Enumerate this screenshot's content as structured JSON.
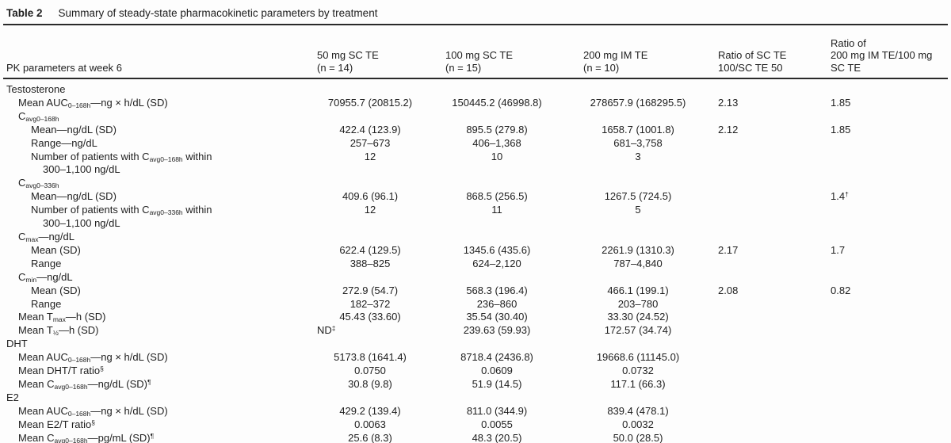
{
  "title": {
    "label": "Table 2",
    "text": "Summary of steady-state pharmacokinetic parameters by treatment"
  },
  "table": {
    "header": {
      "param_col": "PK parameters at week 6",
      "columns": [
        {
          "key": "50mg-sc-te",
          "lines": [
            "50 mg SC TE",
            "(n = 14)"
          ]
        },
        {
          "key": "100mg-sc-te",
          "lines": [
            "100 mg SC TE",
            "(n = 15)"
          ]
        },
        {
          "key": "200mg-im-te",
          "lines": [
            "200 mg IM TE",
            "(n = 10)"
          ]
        },
        {
          "key": "ratio-sc100-sc50",
          "lines": [
            "Ratio of SC TE",
            "100/SC TE 50"
          ]
        },
        {
          "key": "ratio-im200-sc100",
          "lines": [
            "Ratio of",
            "200 mg IM TE/100 mg",
            "SC TE"
          ]
        }
      ]
    },
    "rows": [
      {
        "indent": 0,
        "label": [
          {
            "t": "Testosterone"
          }
        ],
        "cells": [
          "",
          "",
          "",
          "",
          ""
        ]
      },
      {
        "indent": 1,
        "label": [
          {
            "t": "Mean AUC"
          },
          {
            "t": "0–168h",
            "sub": true
          },
          {
            "t": "—ng × h/dL (SD)"
          }
        ],
        "cells": [
          "70955.7 (20815.2)",
          "150445.2 (46998.8)",
          "278657.9 (168295.5)",
          "2.13",
          "1.85"
        ]
      },
      {
        "indent": 1,
        "label": [
          {
            "t": "C"
          },
          {
            "t": "avg0–168h",
            "sub": true
          }
        ],
        "cells": [
          "",
          "",
          "",
          "",
          ""
        ]
      },
      {
        "indent": 2,
        "label": [
          {
            "t": "Mean—ng/dL (SD)"
          }
        ],
        "cells": [
          "422.4 (123.9)",
          "895.5 (279.8)",
          "1658.7 (1001.8)",
          "2.12",
          "1.85"
        ]
      },
      {
        "indent": 2,
        "label": [
          {
            "t": "Range—ng/dL"
          }
        ],
        "cells": [
          "257–673",
          "406–1,368",
          "681–3,758",
          "",
          ""
        ]
      },
      {
        "indent": 2,
        "label": [
          {
            "t": "Number of patients with C"
          },
          {
            "t": "avg0–168h",
            "sub": true
          },
          {
            "t": " within"
          },
          {
            "t": "300–1,100 ng/dL",
            "line2": true
          }
        ],
        "cells": [
          "12",
          "10",
          "3",
          "",
          ""
        ]
      },
      {
        "indent": 1,
        "label": [
          {
            "t": "C"
          },
          {
            "t": "avg0–336h",
            "sub": true
          }
        ],
        "cells": [
          "",
          "",
          "",
          "",
          ""
        ]
      },
      {
        "indent": 2,
        "label": [
          {
            "t": "Mean—ng/dL (SD)"
          }
        ],
        "cells": [
          "409.6 (96.1)",
          "868.5 (256.5)",
          "1267.5 (724.5)",
          "",
          {
            "t": "1.4",
            "sup": "†"
          }
        ]
      },
      {
        "indent": 2,
        "label": [
          {
            "t": "Number of patients with C"
          },
          {
            "t": "avg0–336h",
            "sub": true
          },
          {
            "t": " within"
          },
          {
            "t": "300–1,100 ng/dL",
            "line2": true
          }
        ],
        "cells": [
          "12",
          "11",
          "5",
          "",
          ""
        ]
      },
      {
        "indent": 1,
        "label": [
          {
            "t": "C"
          },
          {
            "t": "max",
            "sub": true
          },
          {
            "t": "—ng/dL"
          }
        ],
        "cells": [
          "",
          "",
          "",
          "",
          ""
        ]
      },
      {
        "indent": 2,
        "label": [
          {
            "t": "Mean (SD)"
          }
        ],
        "cells": [
          "622.4 (129.5)",
          "1345.6 (435.6)",
          "2261.9 (1310.3)",
          "2.17",
          "1.7"
        ]
      },
      {
        "indent": 2,
        "label": [
          {
            "t": "Range"
          }
        ],
        "cells": [
          "388–825",
          "624–2,120",
          "787–4,840",
          "",
          ""
        ]
      },
      {
        "indent": 1,
        "label": [
          {
            "t": "C"
          },
          {
            "t": "min",
            "sub": true
          },
          {
            "t": "—ng/dL"
          }
        ],
        "cells": [
          "",
          "",
          "",
          "",
          ""
        ]
      },
      {
        "indent": 2,
        "label": [
          {
            "t": "Mean (SD)"
          }
        ],
        "cells": [
          "272.9 (54.7)",
          "568.3 (196.4)",
          "466.1 (199.1)",
          "2.08",
          "0.82"
        ]
      },
      {
        "indent": 2,
        "label": [
          {
            "t": "Range"
          }
        ],
        "cells": [
          "182–372",
          "236–860",
          "203–780",
          "",
          ""
        ]
      },
      {
        "indent": 1,
        "label": [
          {
            "t": "Mean T"
          },
          {
            "t": "max",
            "sub": true
          },
          {
            "t": "—h (SD)"
          }
        ],
        "cells": [
          "45.43 (33.60)",
          "35.54 (30.40)",
          "33.30 (24.52)",
          "",
          ""
        ]
      },
      {
        "indent": 1,
        "label": [
          {
            "t": "Mean T"
          },
          {
            "t": "½",
            "sub": true
          },
          {
            "t": "—h (SD)"
          }
        ],
        "cells": [
          {
            "t": "ND",
            "sup": "‡",
            "align": "left"
          },
          "239.63 (59.93)",
          "172.57 (34.74)",
          "",
          ""
        ]
      },
      {
        "indent": 0,
        "label": [
          {
            "t": "DHT"
          }
        ],
        "cells": [
          "",
          "",
          "",
          "",
          ""
        ]
      },
      {
        "indent": 1,
        "label": [
          {
            "t": "Mean AUC"
          },
          {
            "t": "0–168h",
            "sub": true
          },
          {
            "t": "—ng × h/dL (SD)"
          }
        ],
        "cells": [
          "5173.8 (1641.4)",
          "8718.4 (2436.8)",
          "19668.6 (11145.0)",
          "",
          ""
        ]
      },
      {
        "indent": 1,
        "label": [
          {
            "t": "Mean DHT/T ratio"
          },
          {
            "t": "§",
            "sup": true
          }
        ],
        "cells": [
          "0.0750",
          "0.0609",
          "0.0732",
          "",
          ""
        ]
      },
      {
        "indent": 1,
        "label": [
          {
            "t": "Mean C"
          },
          {
            "t": "avg0–168h",
            "sub": true
          },
          {
            "t": "—ng/dL (SD)"
          },
          {
            "t": "¶",
            "sup": true
          }
        ],
        "cells": [
          "30.8 (9.8)",
          "51.9 (14.5)",
          "117.1 (66.3)",
          "",
          ""
        ]
      },
      {
        "indent": 0,
        "label": [
          {
            "t": "E2"
          }
        ],
        "cells": [
          "",
          "",
          "",
          "",
          ""
        ]
      },
      {
        "indent": 1,
        "label": [
          {
            "t": "Mean AUC"
          },
          {
            "t": "0–168h",
            "sub": true
          },
          {
            "t": "—ng × h/dL (SD)"
          }
        ],
        "cells": [
          "429.2 (139.4)",
          "811.0 (344.9)",
          "839.4 (478.1)",
          "",
          ""
        ]
      },
      {
        "indent": 1,
        "label": [
          {
            "t": "Mean E2/T ratio"
          },
          {
            "t": "§",
            "sup": true
          }
        ],
        "cells": [
          "0.0063",
          "0.0055",
          "0.0032",
          "",
          ""
        ]
      },
      {
        "indent": 1,
        "label": [
          {
            "t": "Mean C"
          },
          {
            "t": "avg0–168h",
            "sub": true
          },
          {
            "t": "—pg/mL (SD)"
          },
          {
            "t": "¶",
            "sup": true
          }
        ],
        "cells": [
          "25.6 (8.3)",
          "48.3 (20.5)",
          "50.0 (28.5)",
          "",
          ""
        ]
      }
    ]
  }
}
